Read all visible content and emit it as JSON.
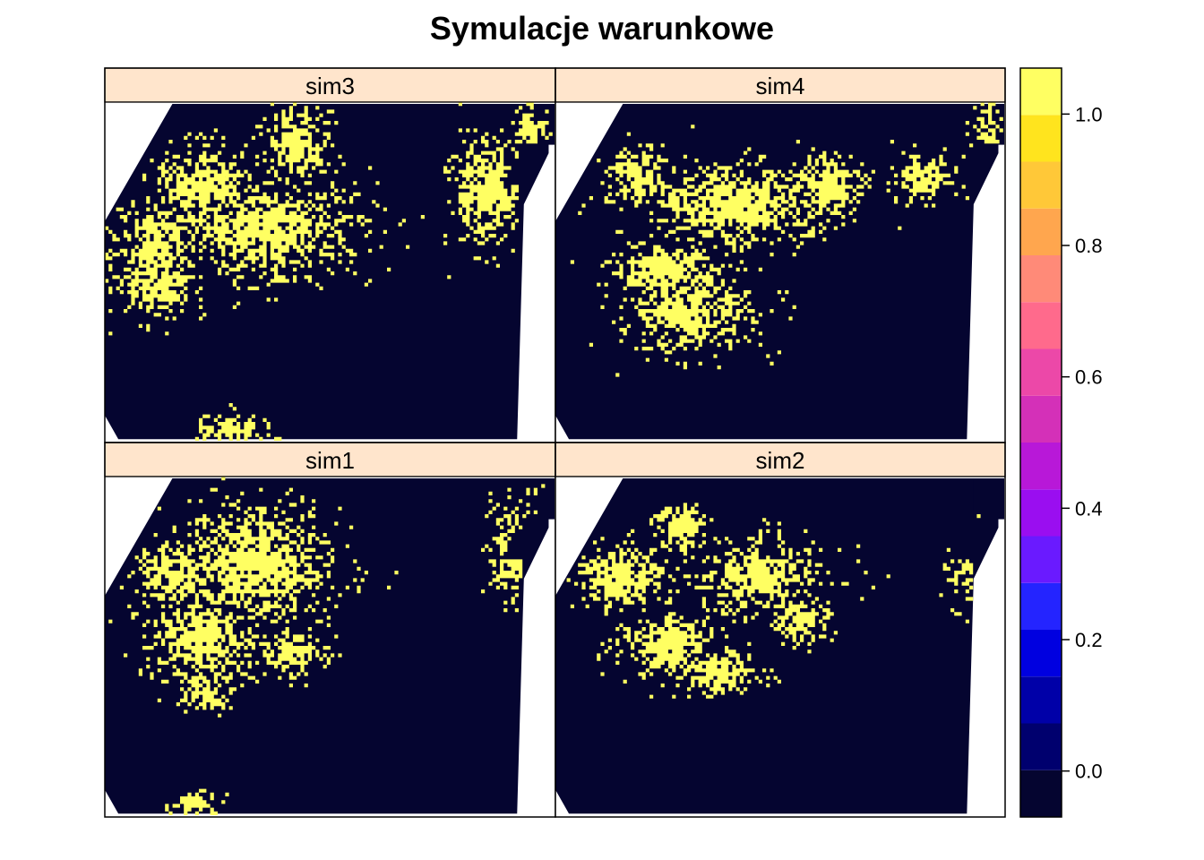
{
  "chart_data": {
    "type": "heatmap",
    "title": "Symulacje warunkowe",
    "layout": "2x2 lattice panels",
    "panels": [
      {
        "name": "sim3",
        "row": 0,
        "col": 0
      },
      {
        "name": "sim4",
        "row": 0,
        "col": 1
      },
      {
        "name": "sim1",
        "row": 1,
        "col": 0
      },
      {
        "name": "sim2",
        "row": 1,
        "col": 1
      }
    ],
    "value_range": [
      -0.07,
      1.07
    ],
    "values": [
      0,
      1
    ],
    "colorbar": {
      "ticks": [
        0.0,
        0.2,
        0.4,
        0.6,
        0.8,
        1.0
      ],
      "tick_labels": [
        "0.0",
        "0.2",
        "0.4",
        "0.6",
        "0.8",
        "1.0"
      ],
      "bins": 16,
      "colors": [
        "#050530",
        "#00006e",
        "#0000a8",
        "#0000e0",
        "#2424ff",
        "#6a1aff",
        "#9a0ef0",
        "#b818d8",
        "#d430b8",
        "#ec48a8",
        "#ff6a8c",
        "#ff8a78",
        "#ffa64e",
        "#ffc838",
        "#ffe41e",
        "#ffff62"
      ]
    },
    "background_color": "#ffffff",
    "strip_color": "#ffe5cc",
    "zero_color": "#050530",
    "one_color": "#ffff62"
  }
}
